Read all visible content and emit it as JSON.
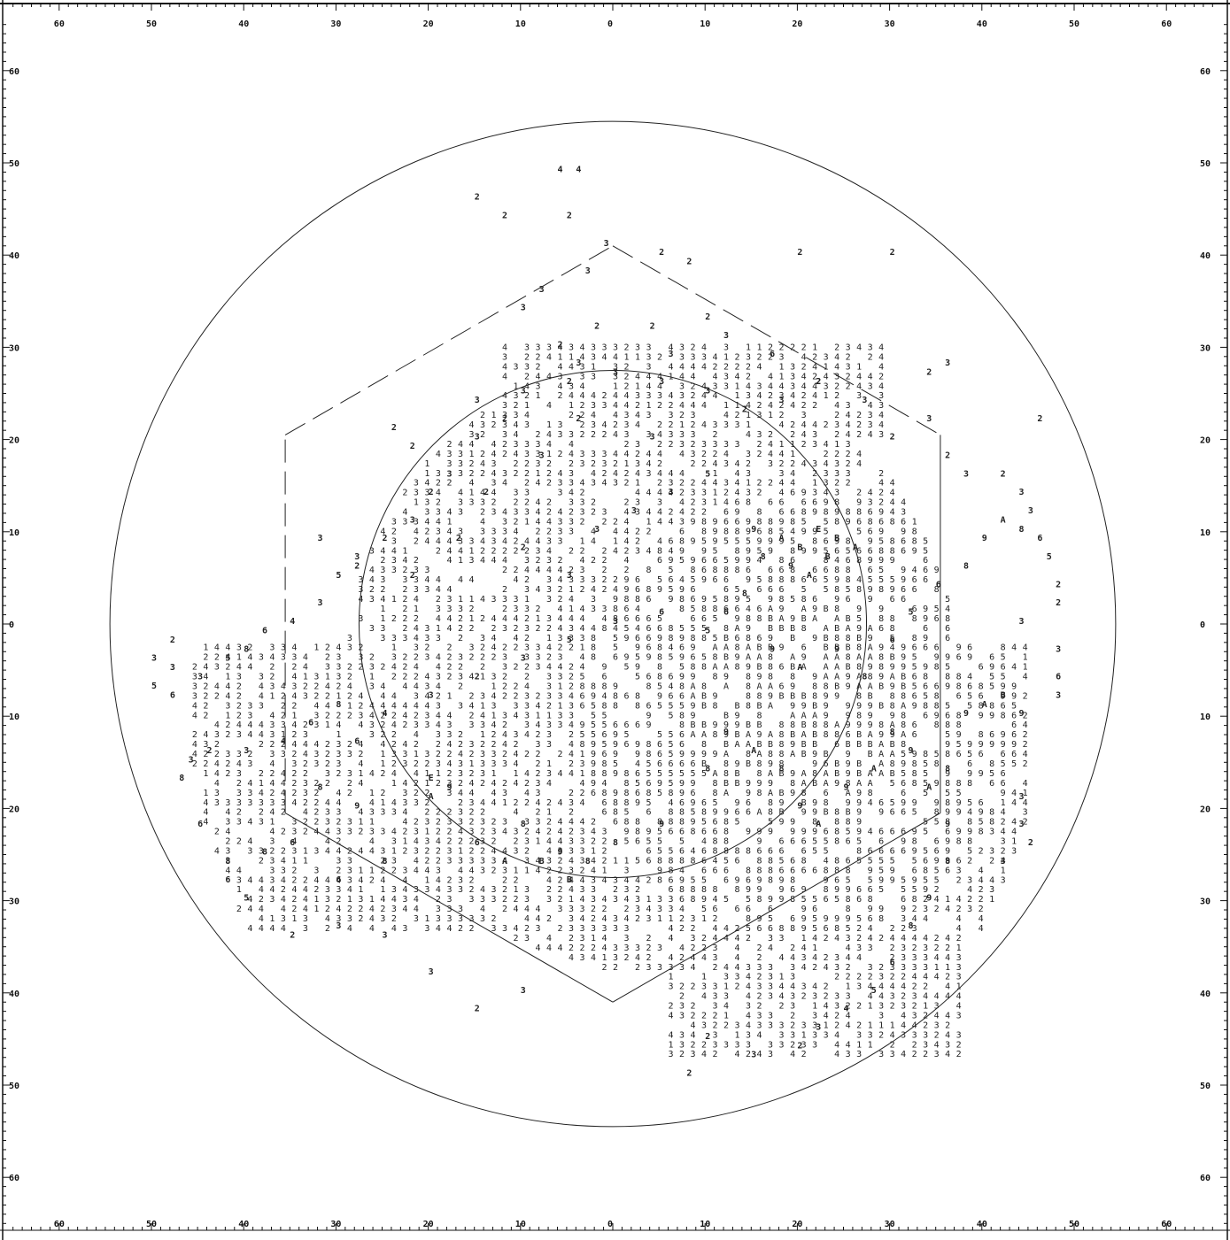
{
  "chart_data": {
    "type": "scatter",
    "title": "",
    "xlabel": "",
    "ylabel": "",
    "xlim": [
      -65,
      65
    ],
    "ylim": [
      -65,
      65
    ],
    "x_ticks": [
      -60,
      -50,
      -40,
      -30,
      -20,
      -10,
      0,
      10,
      20,
      30,
      40,
      50,
      60
    ],
    "y_ticks": [
      -60,
      -50,
      -40,
      -30,
      -20,
      -10,
      0,
      10,
      20,
      30,
      40,
      50,
      60
    ],
    "x_tick_labels": [
      "60",
      "50",
      "40",
      "30",
      "20",
      "10",
      "0",
      "10",
      "20",
      "30",
      "40",
      "50",
      "60"
    ],
    "y_tick_labels": [
      "60",
      "50",
      "40",
      "30",
      "20",
      "10",
      "0",
      "10",
      "20",
      "30",
      "40",
      "50",
      "60"
    ],
    "grid": false,
    "outer_circle_radius": 54.5,
    "inner_circle_radius": 27.5,
    "hexagon_vertices": [
      [
        0,
        41
      ],
      [
        35.5,
        20.5
      ],
      [
        35.5,
        -20.5
      ],
      [
        0,
        -41
      ],
      [
        -35.5,
        -20.5
      ],
      [
        -35.5,
        20.5
      ]
    ],
    "density_symbols": [
      "1",
      "2",
      "3",
      "4",
      "5",
      "6",
      "8",
      "9",
      "A",
      "B",
      "E"
    ],
    "series": [
      {
        "values": [
          [
            -32,
            -18,
            "8"
          ],
          [
            -28,
            -20,
            "9"
          ],
          [
            -20,
            -17,
            "E"
          ],
          [
            -20,
            -19,
            "A"
          ],
          [
            -18,
            -18,
            "9"
          ],
          [
            -12,
            -26,
            "A"
          ],
          [
            -8,
            -26,
            "B"
          ],
          [
            -5,
            -28,
            "B"
          ],
          [
            -6,
            -25,
            "9"
          ],
          [
            -3,
            -26,
            "8"
          ],
          [
            0,
            -24,
            "8"
          ],
          [
            5,
            -22,
            "9"
          ],
          [
            10,
            -16,
            "8"
          ],
          [
            12,
            -12,
            "9"
          ],
          [
            15,
            -14,
            "A"
          ],
          [
            18,
            -16,
            "8"
          ],
          [
            20,
            -20,
            "9"
          ],
          [
            22,
            -22,
            "A"
          ],
          [
            25,
            -18,
            "9"
          ],
          [
            28,
            -16,
            "A"
          ],
          [
            30,
            -12,
            "8"
          ],
          [
            32,
            -14,
            "9"
          ],
          [
            34,
            -18,
            "A"
          ],
          [
            36,
            -16,
            "8"
          ],
          [
            38,
            -10,
            "9"
          ],
          [
            40,
            -9,
            "A"
          ],
          [
            42,
            -8,
            "B"
          ],
          [
            44,
            -10,
            "9"
          ],
          [
            36,
            -22,
            "9"
          ],
          [
            36,
            -26,
            "8"
          ],
          [
            34,
            -30,
            "9"
          ],
          [
            32,
            -33,
            "8"
          ],
          [
            30,
            -37,
            "6"
          ],
          [
            28,
            -40,
            "5"
          ],
          [
            25,
            -42,
            "4"
          ],
          [
            22,
            -44,
            "3"
          ],
          [
            20,
            -46,
            "2"
          ],
          [
            15,
            -47,
            "3"
          ],
          [
            10,
            -45,
            "2"
          ],
          [
            8,
            -49,
            "2"
          ],
          [
            -10,
            -40,
            "3"
          ],
          [
            -15,
            -42,
            "2"
          ],
          [
            -20,
            -38,
            "3"
          ],
          [
            -25,
            -34,
            "3"
          ],
          [
            -30,
            -33,
            "3"
          ],
          [
            -35,
            -34,
            "2"
          ],
          [
            -40,
            -30,
            "5"
          ],
          [
            -42,
            -28,
            "6"
          ],
          [
            -45,
            -22,
            "6"
          ],
          [
            -42,
            -26,
            "8"
          ],
          [
            -38,
            -25,
            "8"
          ],
          [
            -35,
            -24,
            "6"
          ],
          [
            -30,
            -28,
            "6"
          ],
          [
            -25,
            -26,
            "8"
          ],
          [
            -15,
            -24,
            "6"
          ],
          [
            -10,
            -22,
            "8"
          ],
          [
            15,
            10,
            "9"
          ],
          [
            18,
            9,
            "A"
          ],
          [
            20,
            8,
            "B"
          ],
          [
            22,
            10,
            "E"
          ],
          [
            24,
            9,
            "B"
          ],
          [
            26,
            8,
            "A"
          ],
          [
            16,
            7,
            "8"
          ],
          [
            19,
            6,
            "9"
          ],
          [
            21,
            5,
            "A"
          ],
          [
            23,
            7,
            "B"
          ],
          [
            14,
            3,
            "8"
          ],
          [
            12,
            1,
            "6"
          ],
          [
            10,
            -1,
            "5"
          ],
          [
            17,
            -3,
            "9"
          ],
          [
            20,
            -5,
            "A"
          ],
          [
            24,
            -3,
            "9"
          ],
          [
            27,
            -6,
            "8"
          ],
          [
            30,
            -2,
            "6"
          ],
          [
            32,
            1,
            "5"
          ],
          [
            35,
            4,
            "6"
          ],
          [
            38,
            6,
            "8"
          ],
          [
            40,
            9,
            "9"
          ],
          [
            42,
            11,
            "A"
          ],
          [
            44,
            10,
            "8"
          ],
          [
            46,
            9,
            "6"
          ],
          [
            47,
            7,
            "5"
          ],
          [
            45,
            12,
            "3"
          ],
          [
            44,
            14,
            "3"
          ],
          [
            42,
            16,
            "2"
          ],
          [
            38,
            16,
            "3"
          ],
          [
            36,
            18,
            "2"
          ],
          [
            34,
            22,
            "3"
          ],
          [
            30,
            20,
            "2"
          ],
          [
            27,
            24,
            "3"
          ],
          [
            22,
            26,
            "2"
          ],
          [
            18,
            24,
            "3"
          ],
          [
            14,
            23,
            "2"
          ],
          [
            10,
            25,
            "3"
          ],
          [
            5,
            26,
            "3"
          ],
          [
            0,
            27,
            "3"
          ],
          [
            -5,
            26,
            "2"
          ],
          [
            -10,
            25,
            "3"
          ],
          [
            -12,
            22,
            "2"
          ],
          [
            -15,
            20,
            "3"
          ],
          [
            -18,
            16,
            "3"
          ],
          [
            -20,
            14,
            "2"
          ],
          [
            -22,
            11,
            "3"
          ],
          [
            -25,
            9,
            "2"
          ],
          [
            -28,
            7,
            "3"
          ],
          [
            -30,
            5,
            "5"
          ],
          [
            -32,
            2,
            "3"
          ],
          [
            -35,
            0,
            "4"
          ],
          [
            -38,
            -1,
            "6"
          ],
          [
            -40,
            -3,
            "8"
          ],
          [
            -42,
            -4,
            "5"
          ],
          [
            -45,
            -6,
            "3"
          ],
          [
            -48,
            -8,
            "6"
          ],
          [
            -50,
            -7,
            "5"
          ],
          [
            -48,
            -5,
            "3"
          ],
          [
            -30,
            -9,
            "8"
          ],
          [
            -33,
            -11,
            "6"
          ],
          [
            -36,
            -13,
            "4"
          ],
          [
            -28,
            -13,
            "6"
          ],
          [
            -25,
            -10,
            "4"
          ],
          [
            -20,
            -8,
            "3"
          ],
          [
            -15,
            -6,
            "2"
          ],
          [
            -10,
            -4,
            "3"
          ],
          [
            -5,
            -2,
            "5"
          ],
          [
            0,
            0,
            "3"
          ],
          [
            5,
            1,
            "6"
          ],
          [
            -5,
            5,
            "3"
          ],
          [
            -10,
            8,
            "2"
          ],
          [
            -2,
            10,
            "3"
          ],
          [
            2,
            12,
            "3"
          ],
          [
            6,
            14,
            "3"
          ],
          [
            10,
            16,
            "5"
          ],
          [
            4,
            20,
            "3"
          ],
          [
            -4,
            22,
            "2"
          ],
          [
            -8,
            18,
            "3"
          ],
          [
            -14,
            14,
            "2"
          ],
          [
            -12,
            44,
            "2"
          ],
          [
            -15,
            46,
            "2"
          ],
          [
            -6,
            49,
            "4"
          ],
          [
            -4,
            49,
            "4"
          ],
          [
            -5,
            44,
            "2"
          ],
          [
            -1,
            41,
            "3"
          ],
          [
            -3,
            38,
            "3"
          ],
          [
            -8,
            36,
            "3"
          ],
          [
            -10,
            34,
            "3"
          ],
          [
            -2,
            32,
            "2"
          ],
          [
            4,
            32,
            "2"
          ],
          [
            10,
            33,
            "2"
          ],
          [
            12,
            31,
            "3"
          ],
          [
            17,
            29,
            "6"
          ],
          [
            22,
            26,
            "2"
          ],
          [
            34,
            27,
            "2"
          ],
          [
            36,
            28,
            "3"
          ],
          [
            -6,
            30,
            "2"
          ],
          [
            -4,
            28,
            "3"
          ],
          [
            6,
            29,
            "3"
          ],
          [
            -22,
            19,
            "2"
          ],
          [
            -24,
            21,
            "2"
          ],
          [
            -17,
            9,
            "2"
          ],
          [
            -32,
            9,
            "3"
          ],
          [
            -28,
            6,
            "2"
          ],
          [
            -22,
            5,
            "2"
          ],
          [
            -40,
            -14,
            "3"
          ],
          [
            -46,
            -15,
            "3"
          ],
          [
            -47,
            -17,
            "8"
          ],
          [
            -44,
            -14,
            "2"
          ],
          [
            -48,
            -2,
            "2"
          ],
          [
            -50,
            -4,
            "3"
          ],
          [
            44,
            0,
            "3"
          ],
          [
            48,
            -3,
            "3"
          ],
          [
            48,
            -6,
            "6"
          ],
          [
            48,
            -8,
            "3"
          ],
          [
            44,
            -19,
            "3"
          ],
          [
            44,
            -22,
            "3"
          ],
          [
            42,
            -26,
            "3"
          ],
          [
            45,
            -24,
            "2"
          ],
          [
            48,
            2,
            "2"
          ],
          [
            48,
            4,
            "2"
          ],
          [
            46,
            22,
            "2"
          ],
          [
            30,
            40,
            "2"
          ],
          [
            20,
            40,
            "2"
          ],
          [
            8,
            39,
            "2"
          ],
          [
            5,
            40,
            "2"
          ],
          [
            -15,
            24,
            "3"
          ]
        ]
      }
    ]
  },
  "page": {
    "mark_line": "—"
  }
}
